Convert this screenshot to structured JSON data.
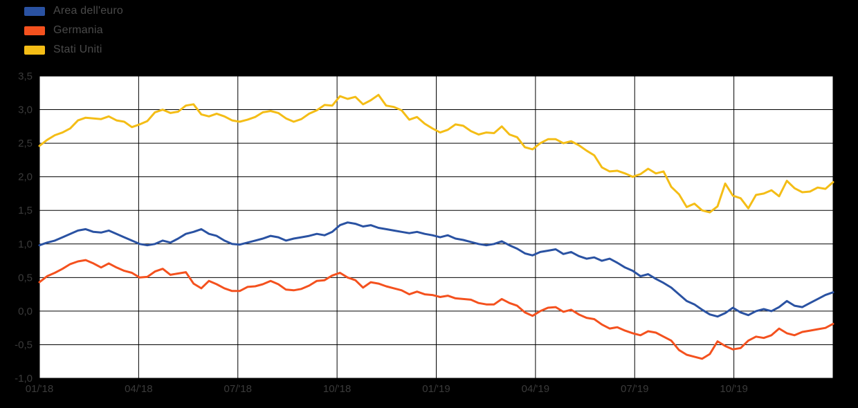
{
  "page": {
    "background_color": "#000000",
    "plot_background_color": "#ffffff",
    "grid_color": "#000000",
    "tick_label_color": "#3b3b3b",
    "legend_label_color": "#4a4a4a"
  },
  "chart_data": {
    "type": "line",
    "title": "",
    "xlabel": "",
    "ylabel": "",
    "grid": true,
    "legend_position": "top-left",
    "ylim": [
      -1.0,
      3.5
    ],
    "y_tick_values": [
      3.5,
      3.0,
      2.5,
      2.0,
      1.5,
      1.0,
      0.5,
      0.0,
      -0.5,
      -1.0
    ],
    "y_tick_labels": [
      "3,5",
      "3,0",
      "2,5",
      "2,0",
      "1,5",
      "1,0",
      "0,5",
      "0,0",
      "-0,5",
      "-1,0"
    ],
    "x_tick_positions": [
      0,
      0.125,
      0.25,
      0.375,
      0.5,
      0.625,
      0.75,
      0.875,
      1
    ],
    "x_tick_labels": [
      "01/'18",
      "04/'18",
      "07/'18",
      "10/'18",
      "01/'19",
      "04/'19",
      "07/'19",
      "10/'19",
      ""
    ],
    "x_span": "weekly observations, Jan 2018 - Dec 2019",
    "series": [
      {
        "name": "Area dell'euro",
        "color": "#2a52a2",
        "values": [
          0.98,
          1.02,
          1.05,
          1.1,
          1.15,
          1.2,
          1.22,
          1.18,
          1.17,
          1.2,
          1.15,
          1.1,
          1.05,
          1.0,
          0.98,
          1.0,
          1.05,
          1.02,
          1.08,
          1.15,
          1.18,
          1.22,
          1.15,
          1.12,
          1.05,
          1.0,
          0.99,
          1.02,
          1.05,
          1.08,
          1.12,
          1.1,
          1.05,
          1.08,
          1.1,
          1.12,
          1.15,
          1.13,
          1.18,
          1.28,
          1.32,
          1.3,
          1.26,
          1.28,
          1.24,
          1.22,
          1.2,
          1.18,
          1.16,
          1.18,
          1.15,
          1.13,
          1.1,
          1.13,
          1.08,
          1.06,
          1.03,
          1.0,
          0.98,
          1.0,
          1.04,
          0.98,
          0.93,
          0.86,
          0.83,
          0.88,
          0.9,
          0.92,
          0.85,
          0.88,
          0.82,
          0.78,
          0.8,
          0.75,
          0.78,
          0.72,
          0.65,
          0.6,
          0.52,
          0.55,
          0.48,
          0.42,
          0.35,
          0.25,
          0.15,
          0.1,
          0.02,
          -0.05,
          -0.08,
          -0.03,
          0.05,
          -0.02,
          -0.06,
          0.0,
          0.03,
          0.0,
          0.06,
          0.15,
          0.08,
          0.06,
          0.12,
          0.18,
          0.24,
          0.28
        ]
      },
      {
        "name": "Germania",
        "color": "#f4511e",
        "values": [
          0.43,
          0.52,
          0.57,
          0.63,
          0.7,
          0.74,
          0.76,
          0.71,
          0.65,
          0.71,
          0.65,
          0.6,
          0.57,
          0.5,
          0.51,
          0.59,
          0.63,
          0.54,
          0.56,
          0.58,
          0.41,
          0.34,
          0.45,
          0.4,
          0.34,
          0.3,
          0.3,
          0.36,
          0.37,
          0.4,
          0.45,
          0.4,
          0.32,
          0.31,
          0.33,
          0.38,
          0.45,
          0.46,
          0.53,
          0.57,
          0.5,
          0.46,
          0.35,
          0.43,
          0.41,
          0.37,
          0.34,
          0.31,
          0.25,
          0.29,
          0.25,
          0.24,
          0.21,
          0.23,
          0.19,
          0.18,
          0.17,
          0.12,
          0.1,
          0.1,
          0.18,
          0.12,
          0.08,
          -0.02,
          -0.07,
          0.0,
          0.05,
          0.06,
          -0.01,
          0.02,
          -0.05,
          -0.1,
          -0.12,
          -0.2,
          -0.26,
          -0.24,
          -0.29,
          -0.33,
          -0.36,
          -0.3,
          -0.32,
          -0.38,
          -0.44,
          -0.58,
          -0.65,
          -0.68,
          -0.71,
          -0.64,
          -0.45,
          -0.52,
          -0.57,
          -0.55,
          -0.44,
          -0.38,
          -0.4,
          -0.36,
          -0.26,
          -0.33,
          -0.36,
          -0.31,
          -0.29,
          -0.27,
          -0.25,
          -0.19
        ]
      },
      {
        "name": "Stati Uniti",
        "color": "#f4bd16",
        "values": [
          2.46,
          2.55,
          2.62,
          2.66,
          2.72,
          2.84,
          2.88,
          2.87,
          2.86,
          2.9,
          2.84,
          2.82,
          2.74,
          2.78,
          2.83,
          2.96,
          3.0,
          2.95,
          2.97,
          3.06,
          3.08,
          2.93,
          2.9,
          2.94,
          2.9,
          2.84,
          2.82,
          2.85,
          2.89,
          2.96,
          2.98,
          2.95,
          2.87,
          2.82,
          2.86,
          2.94,
          2.99,
          3.07,
          3.06,
          3.2,
          3.16,
          3.19,
          3.08,
          3.14,
          3.22,
          3.06,
          3.04,
          2.99,
          2.85,
          2.89,
          2.79,
          2.72,
          2.66,
          2.7,
          2.78,
          2.76,
          2.68,
          2.63,
          2.66,
          2.65,
          2.75,
          2.63,
          2.59,
          2.44,
          2.41,
          2.5,
          2.56,
          2.56,
          2.5,
          2.53,
          2.47,
          2.39,
          2.32,
          2.14,
          2.08,
          2.09,
          2.05,
          2.0,
          2.04,
          2.12,
          2.05,
          2.08,
          1.85,
          1.74,
          1.55,
          1.6,
          1.5,
          1.47,
          1.56,
          1.9,
          1.72,
          1.68,
          1.53,
          1.73,
          1.75,
          1.8,
          1.71,
          1.94,
          1.83,
          1.77,
          1.78,
          1.84,
          1.82,
          1.92
        ]
      }
    ]
  }
}
